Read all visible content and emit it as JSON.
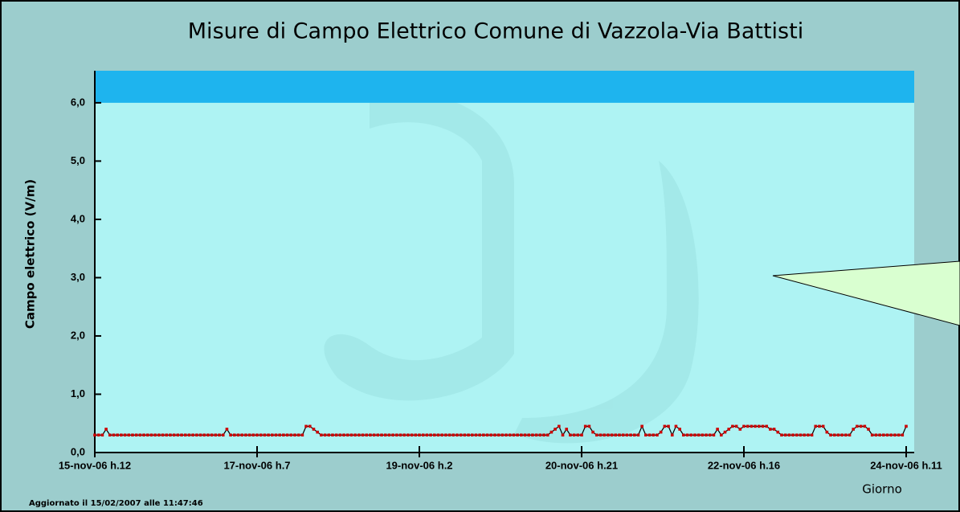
{
  "chart_data": {
    "type": "line",
    "title": "Misure di Campo Elettrico Comune di Vazzola-Via Battisti",
    "y_label": "Campo elettrico (V/m)",
    "x_label": "Giorno",
    "footer": "Aggiornato il 15/02/2007 alle 11:47:46",
    "categories": [
      "15-nov-06 h.12",
      null,
      null,
      null,
      null,
      null,
      null,
      null,
      null,
      null,
      null,
      null,
      null,
      null,
      null,
      null,
      null,
      null,
      null,
      null,
      null,
      null,
      null,
      null,
      null,
      null,
      null,
      null,
      null,
      null,
      null,
      null,
      null,
      null,
      null,
      null,
      null,
      null,
      null,
      null,
      null,
      null,
      null,
      "17-nov-06 h.7",
      null,
      null,
      null,
      null,
      null,
      null,
      null,
      null,
      null,
      null,
      null,
      null,
      null,
      null,
      null,
      null,
      null,
      null,
      null,
      null,
      null,
      null,
      null,
      null,
      null,
      null,
      null,
      null,
      null,
      null,
      null,
      null,
      null,
      null,
      null,
      null,
      null,
      null,
      null,
      null,
      null,
      null,
      "19-nov-06 h.2",
      null,
      null,
      null,
      null,
      null,
      null,
      null,
      null,
      null,
      null,
      null,
      null,
      null,
      null,
      null,
      null,
      null,
      null,
      null,
      null,
      null,
      null,
      null,
      null,
      null,
      null,
      null,
      null,
      null,
      null,
      null,
      null,
      null,
      null,
      null,
      null,
      null,
      null,
      null,
      null,
      null,
      null,
      "20-nov-06 h.21",
      null,
      null,
      null,
      null,
      null,
      null,
      null,
      null,
      null,
      null,
      null,
      null,
      null,
      null,
      null,
      null,
      null,
      null,
      null,
      null,
      null,
      null,
      null,
      null,
      null,
      null,
      null,
      null,
      null,
      null,
      null,
      null,
      null,
      null,
      null,
      null,
      null,
      null,
      null,
      null,
      null,
      null,
      "22-nov-06 h.16",
      null,
      null,
      null,
      null,
      null,
      null,
      null,
      null,
      null,
      null,
      null,
      null,
      null,
      null,
      null,
      null,
      null,
      null,
      null,
      null,
      null,
      null,
      null,
      null,
      null,
      null,
      null,
      null,
      null,
      null,
      null,
      null,
      null,
      null,
      null,
      null,
      null,
      null,
      null,
      null,
      null,
      null,
      "24-nov-06 h.11"
    ],
    "series": [
      {
        "color": "#cc0000",
        "line_color": "#000000",
        "values": [
          0.3,
          0.3,
          0.3,
          0.4,
          0.3,
          0.3,
          0.3,
          0.3,
          0.3,
          0.3,
          0.3,
          0.3,
          0.3,
          0.3,
          0.3,
          0.3,
          0.3,
          0.3,
          0.3,
          0.3,
          0.3,
          0.3,
          0.3,
          0.3,
          0.3,
          0.3,
          0.3,
          0.3,
          0.3,
          0.3,
          0.3,
          0.3,
          0.3,
          0.3,
          0.3,
          0.4,
          0.3,
          0.3,
          0.3,
          0.3,
          0.3,
          0.3,
          0.3,
          0.3,
          0.3,
          0.3,
          0.3,
          0.3,
          0.3,
          0.3,
          0.3,
          0.3,
          0.3,
          0.3,
          0.3,
          0.3,
          0.45,
          0.45,
          0.4,
          0.35,
          0.3,
          0.3,
          0.3,
          0.3,
          0.3,
          0.3,
          0.3,
          0.3,
          0.3,
          0.3,
          0.3,
          0.3,
          0.3,
          0.3,
          0.3,
          0.3,
          0.3,
          0.3,
          0.3,
          0.3,
          0.3,
          0.3,
          0.3,
          0.3,
          0.3,
          0.3,
          0.3,
          0.3,
          0.3,
          0.3,
          0.3,
          0.3,
          0.3,
          0.3,
          0.3,
          0.3,
          0.3,
          0.3,
          0.3,
          0.3,
          0.3,
          0.3,
          0.3,
          0.3,
          0.3,
          0.3,
          0.3,
          0.3,
          0.3,
          0.3,
          0.3,
          0.3,
          0.3,
          0.3,
          0.3,
          0.3,
          0.3,
          0.3,
          0.3,
          0.3,
          0.3,
          0.35,
          0.4,
          0.45,
          0.3,
          0.4,
          0.3,
          0.3,
          0.3,
          0.3,
          0.45,
          0.45,
          0.35,
          0.3,
          0.3,
          0.3,
          0.3,
          0.3,
          0.3,
          0.3,
          0.3,
          0.3,
          0.3,
          0.3,
          0.3,
          0.45,
          0.3,
          0.3,
          0.3,
          0.3,
          0.35,
          0.45,
          0.45,
          0.3,
          0.45,
          0.4,
          0.3,
          0.3,
          0.3,
          0.3,
          0.3,
          0.3,
          0.3,
          0.3,
          0.3,
          0.4,
          0.3,
          0.35,
          0.4,
          0.45,
          0.45,
          0.4,
          0.45,
          0.45,
          0.45,
          0.45,
          0.45,
          0.45,
          0.45,
          0.4,
          0.4,
          0.35,
          0.3,
          0.3,
          0.3,
          0.3,
          0.3,
          0.3,
          0.3,
          0.3,
          0.3,
          0.45,
          0.45,
          0.45,
          0.35,
          0.3,
          0.3,
          0.3,
          0.3,
          0.3,
          0.3,
          0.4,
          0.45,
          0.45,
          0.45,
          0.4,
          0.3,
          0.3,
          0.3,
          0.3,
          0.3,
          0.3,
          0.3,
          0.3,
          0.3,
          0.45
        ]
      }
    ],
    "ylim": [
      0,
      6.55
    ],
    "yticks": [
      {
        "value": 0,
        "label": "0,0"
      },
      {
        "value": 1,
        "label": "1,0"
      },
      {
        "value": 2,
        "label": "2,0"
      },
      {
        "value": 3,
        "label": "3,0"
      },
      {
        "value": 4,
        "label": "4,0"
      },
      {
        "value": 5,
        "label": "5,0"
      },
      {
        "value": 6,
        "label": "6,0"
      }
    ],
    "band_from": 6,
    "band_color": "#1eb4ee",
    "plot_color": "#aef3f3"
  }
}
